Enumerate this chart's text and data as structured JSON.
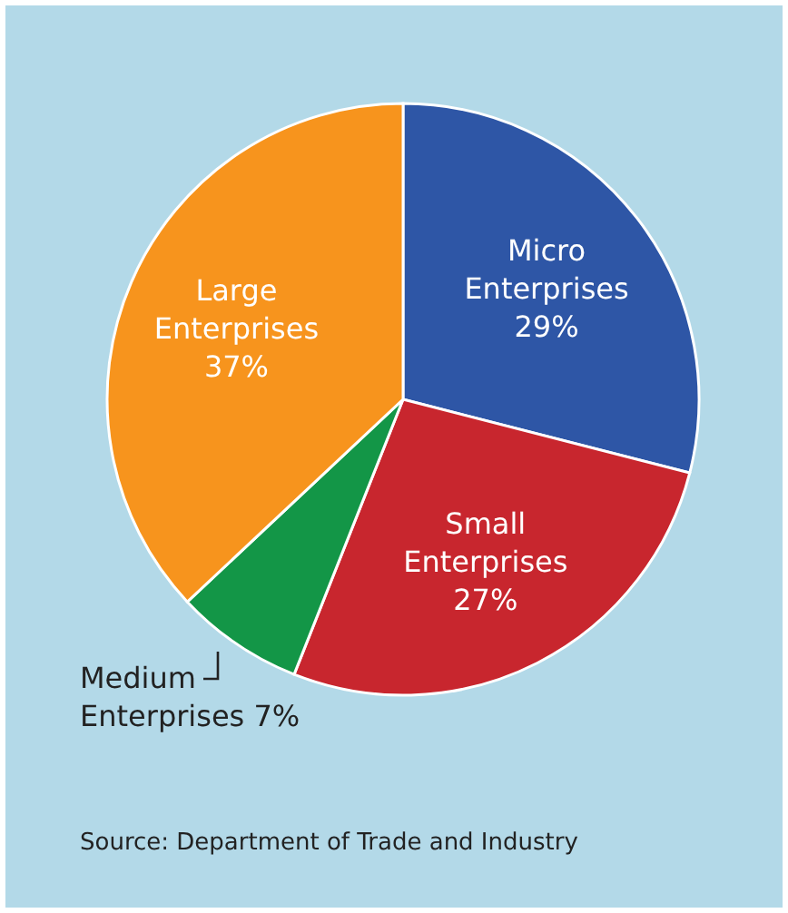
{
  "chart_data": {
    "type": "pie",
    "categories": [
      "Micro Enterprises",
      "Small Enterprises",
      "Medium Enterprises",
      "Large Enterprises"
    ],
    "values": [
      29,
      27,
      7,
      37
    ],
    "value_labels": [
      "29%",
      "27%",
      "7%",
      "37%"
    ],
    "colors": [
      "#2e56a6",
      "#c8262e",
      "#139647",
      "#f7941d"
    ],
    "annotations": [
      "Source: Department of Trade and Industry"
    ]
  }
}
